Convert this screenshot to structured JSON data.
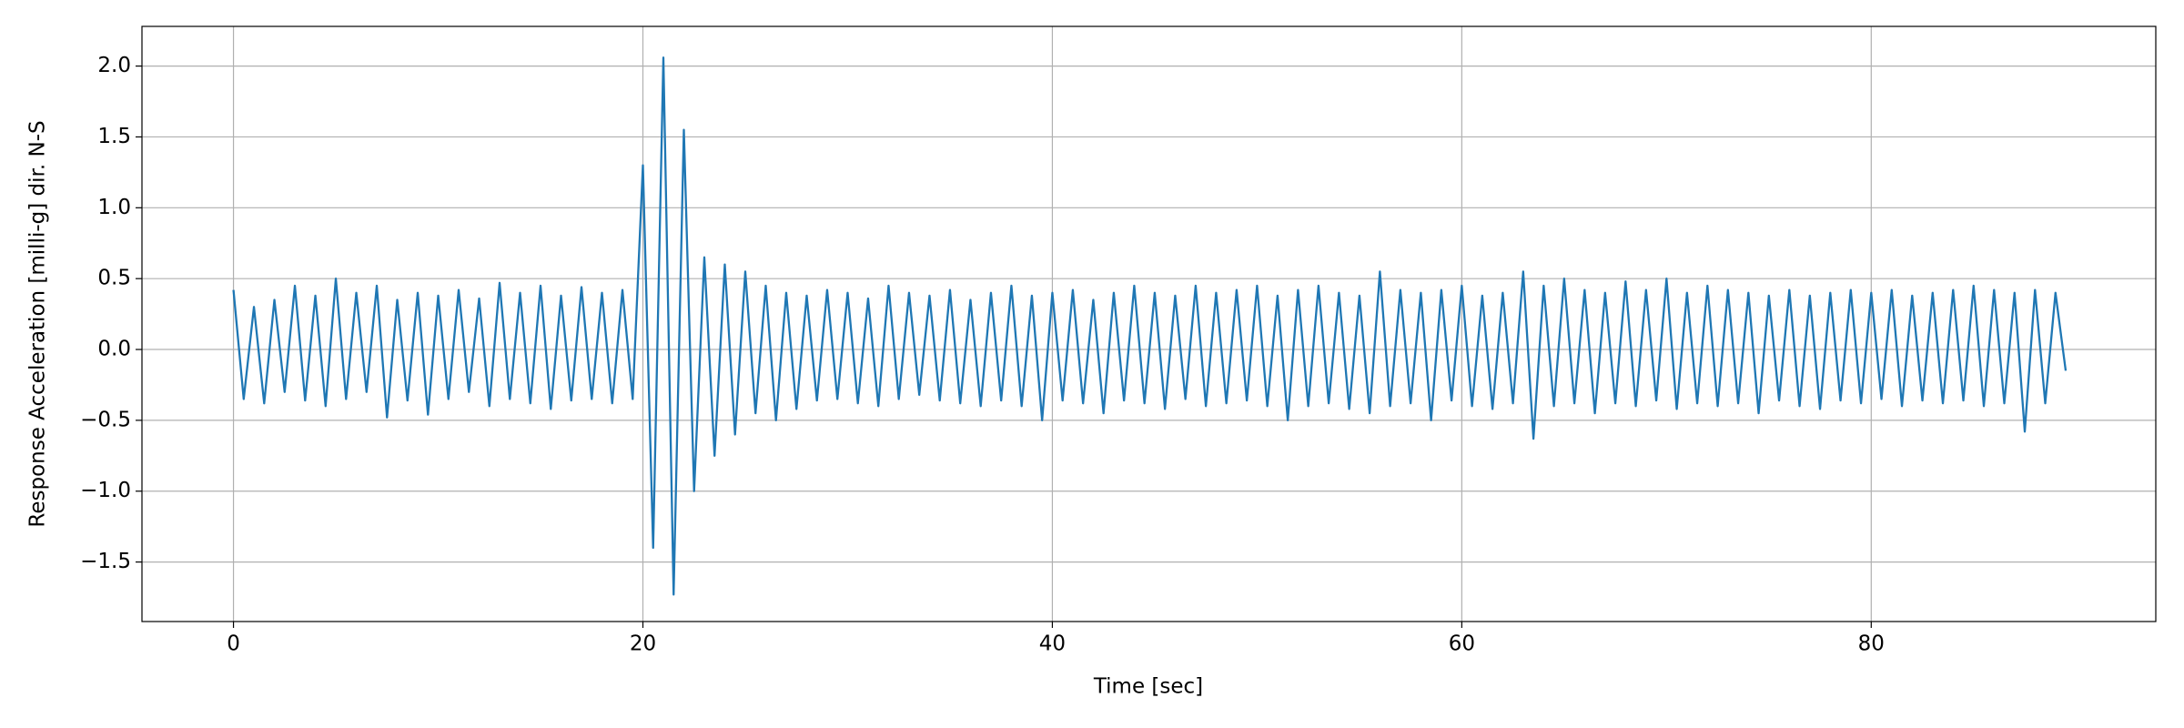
{
  "chart_data": {
    "type": "line",
    "xlabel": "Time [sec]",
    "ylabel": "Response Acceleration [milli-g] dir. N-S",
    "x": [
      0,
      0.5,
      1,
      1.5,
      2,
      2.5,
      3,
      3.5,
      4,
      4.5,
      5,
      5.5,
      6,
      6.5,
      7,
      7.5,
      8,
      8.5,
      9,
      9.5,
      10,
      10.5,
      11,
      11.5,
      12,
      12.5,
      13,
      13.5,
      14,
      14.5,
      15,
      15.5,
      16,
      16.5,
      17,
      17.5,
      18,
      18.5,
      19,
      19.5,
      20,
      20.5,
      21,
      21.5,
      22,
      22.5,
      23,
      23.5,
      24,
      24.5,
      25,
      25.5,
      26,
      26.5,
      27,
      27.5,
      28,
      28.5,
      29,
      29.5,
      30,
      30.5,
      31,
      31.5,
      32,
      32.5,
      33,
      33.5,
      34,
      34.5,
      35,
      35.5,
      36,
      36.5,
      37,
      37.5,
      38,
      38.5,
      39,
      39.5,
      40,
      40.5,
      41,
      41.5,
      42,
      42.5,
      43,
      43.5,
      44,
      44.5,
      45,
      45.5,
      46,
      46.5,
      47,
      47.5,
      48,
      48.5,
      49,
      49.5,
      50,
      50.5,
      51,
      51.5,
      52,
      52.5,
      53,
      53.5,
      54,
      54.5,
      55,
      55.5,
      56,
      56.5,
      57,
      57.5,
      58,
      58.5,
      59,
      59.5,
      60,
      60.5,
      61,
      61.5,
      62,
      62.5,
      63,
      63.5,
      64,
      64.5,
      65,
      65.5,
      66,
      66.5,
      67,
      67.5,
      68,
      68.5,
      69,
      69.5,
      70,
      70.5,
      71,
      71.5,
      72,
      72.5,
      73,
      73.5,
      74,
      74.5,
      75,
      75.5,
      76,
      76.5,
      77,
      77.5,
      78,
      78.5,
      79,
      79.5,
      80,
      80.5,
      81,
      81.5,
      82,
      82.5,
      83,
      83.5,
      84,
      84.5,
      85,
      85.5,
      86,
      86.5,
      87,
      87.5,
      88,
      88.5,
      89,
      89.5
    ],
    "series": [
      {
        "color": "#1f77b4",
        "values": [
          0.42,
          -0.35,
          0.3,
          -0.38,
          0.35,
          -0.3,
          0.45,
          -0.36,
          0.38,
          -0.4,
          0.5,
          -0.35,
          0.4,
          -0.3,
          0.45,
          -0.48,
          0.35,
          -0.36,
          0.4,
          -0.46,
          0.38,
          -0.35,
          0.42,
          -0.3,
          0.36,
          -0.4,
          0.47,
          -0.35,
          0.4,
          -0.38,
          0.45,
          -0.42,
          0.38,
          -0.36,
          0.44,
          -0.35,
          0.4,
          -0.38,
          0.42,
          -0.35,
          1.3,
          -1.4,
          2.06,
          -1.73,
          1.55,
          -1.0,
          0.65,
          -0.75,
          0.6,
          -0.6,
          0.55,
          -0.45,
          0.45,
          -0.5,
          0.4,
          -0.42,
          0.38,
          -0.36,
          0.42,
          -0.35,
          0.4,
          -0.38,
          0.36,
          -0.4,
          0.45,
          -0.35,
          0.4,
          -0.32,
          0.38,
          -0.36,
          0.42,
          -0.38,
          0.35,
          -0.4,
          0.4,
          -0.36,
          0.45,
          -0.4,
          0.38,
          -0.5,
          0.4,
          -0.36,
          0.42,
          -0.38,
          0.35,
          -0.45,
          0.4,
          -0.36,
          0.45,
          -0.38,
          0.4,
          -0.42,
          0.38,
          -0.35,
          0.45,
          -0.4,
          0.4,
          -0.38,
          0.42,
          -0.36,
          0.45,
          -0.4,
          0.38,
          -0.5,
          0.42,
          -0.4,
          0.45,
          -0.38,
          0.4,
          -0.42,
          0.38,
          -0.45,
          0.55,
          -0.4,
          0.42,
          -0.38,
          0.4,
          -0.5,
          0.42,
          -0.36,
          0.45,
          -0.4,
          0.38,
          -0.42,
          0.4,
          -0.38,
          0.55,
          -0.63,
          0.45,
          -0.4,
          0.5,
          -0.38,
          0.42,
          -0.45,
          0.4,
          -0.38,
          0.48,
          -0.4,
          0.42,
          -0.36,
          0.5,
          -0.42,
          0.4,
          -0.38,
          0.45,
          -0.4,
          0.42,
          -0.38,
          0.4,
          -0.45,
          0.38,
          -0.36,
          0.42,
          -0.4,
          0.38,
          -0.42,
          0.4,
          -0.36,
          0.42,
          -0.38,
          0.4,
          -0.35,
          0.42,
          -0.4,
          0.38,
          -0.36,
          0.4,
          -0.38,
          0.42,
          -0.36,
          0.45,
          -0.4,
          0.42,
          -0.38,
          0.4,
          -0.58,
          0.42,
          -0.38,
          0.4,
          -0.15
        ]
      }
    ],
    "xlim": [
      -4.47,
      93.9
    ],
    "ylim": [
      -1.92,
      2.28
    ],
    "xticks": [
      0,
      20,
      40,
      60,
      80
    ],
    "yticks": [
      {
        "value": -1.5,
        "label": "−1.5"
      },
      {
        "value": -1.0,
        "label": "−1.0"
      },
      {
        "value": -0.5,
        "label": "−0.5"
      },
      {
        "value": 0,
        "label": "0.0"
      },
      0.5,
      {
        "value": 1.0,
        "label": "1.0"
      },
      1.5,
      {
        "value": 2.0,
        "label": "2.0"
      }
    ],
    "grid": true
  }
}
